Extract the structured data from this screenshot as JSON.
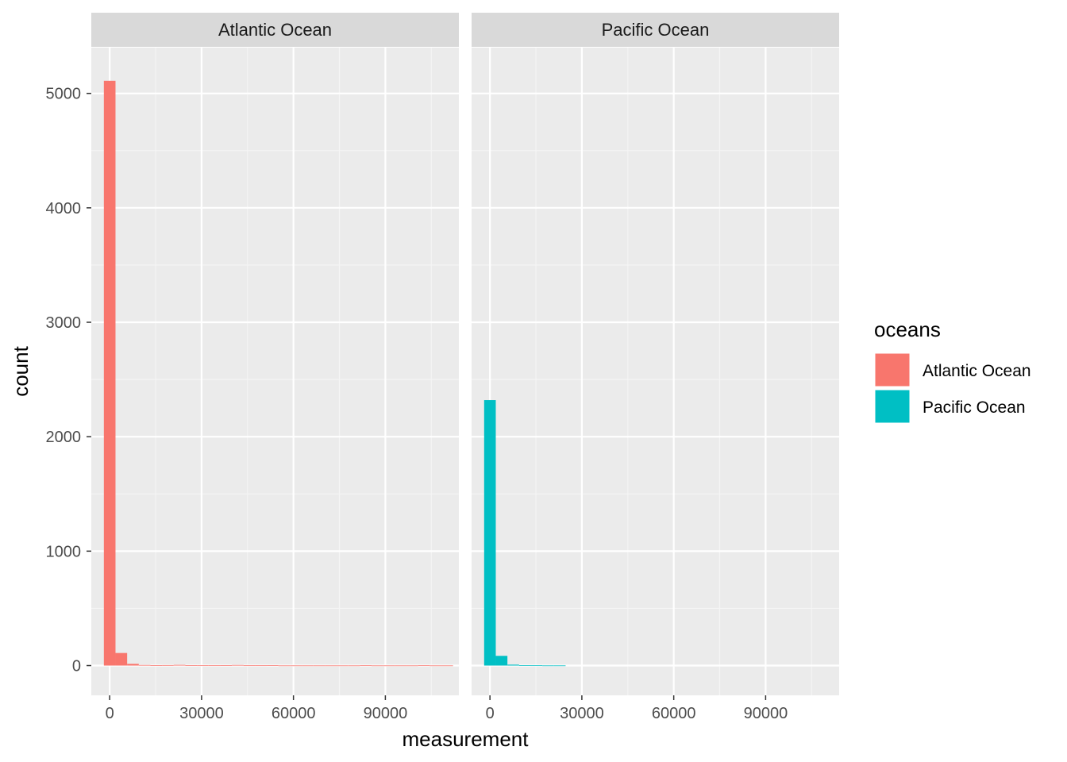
{
  "chart_data": {
    "type": "bar",
    "subtype": "faceted-histogram",
    "xlabel": "measurement",
    "ylabel": "count",
    "xlim": [
      -6000,
      114000
    ],
    "ylim": [
      -260,
      5400
    ],
    "x_ticks": [
      0,
      30000,
      60000,
      90000
    ],
    "x_tick_labels": [
      "0",
      "30000",
      "60000",
      "90000"
    ],
    "y_ticks": [
      0,
      1000,
      2000,
      3000,
      4000,
      5000
    ],
    "y_tick_labels": [
      "0",
      "1000",
      "2000",
      "3000",
      "4000",
      "5000"
    ],
    "bin_width": 3800,
    "legend": {
      "title": "oceans",
      "position": "right",
      "entries": [
        {
          "label": "Atlantic Ocean",
          "color": "#F8766D"
        },
        {
          "label": "Pacific Ocean",
          "color": "#00BFC4"
        }
      ]
    },
    "grid": true,
    "panels": [
      {
        "strip": "Atlantic Ocean",
        "color": "#F8766D",
        "bins": [
          {
            "x": 0,
            "count": 5110
          },
          {
            "x": 3800,
            "count": 110
          },
          {
            "x": 7600,
            "count": 15
          },
          {
            "x": 11400,
            "count": 5
          },
          {
            "x": 15200,
            "count": 3
          },
          {
            "x": 19000,
            "count": 4
          },
          {
            "x": 22800,
            "count": 6
          },
          {
            "x": 26600,
            "count": 3
          },
          {
            "x": 30400,
            "count": 2
          },
          {
            "x": 34200,
            "count": 2
          },
          {
            "x": 38000,
            "count": 3
          },
          {
            "x": 41800,
            "count": 5
          },
          {
            "x": 45600,
            "count": 2
          },
          {
            "x": 49400,
            "count": 2
          },
          {
            "x": 53200,
            "count": 3
          },
          {
            "x": 57000,
            "count": 1
          },
          {
            "x": 60800,
            "count": 1
          },
          {
            "x": 64600,
            "count": 1
          },
          {
            "x": 68400,
            "count": 1
          },
          {
            "x": 72200,
            "count": 1
          },
          {
            "x": 76000,
            "count": 1
          },
          {
            "x": 79800,
            "count": 1
          },
          {
            "x": 83600,
            "count": 2
          },
          {
            "x": 87400,
            "count": 1
          },
          {
            "x": 91200,
            "count": 1
          },
          {
            "x": 95000,
            "count": 1
          },
          {
            "x": 98800,
            "count": 1
          },
          {
            "x": 102600,
            "count": 2
          },
          {
            "x": 106400,
            "count": 1
          },
          {
            "x": 110200,
            "count": 1
          }
        ]
      },
      {
        "strip": "Pacific Ocean",
        "color": "#00BFC4",
        "bins": [
          {
            "x": 0,
            "count": 2320
          },
          {
            "x": 3800,
            "count": 85
          },
          {
            "x": 7600,
            "count": 8
          },
          {
            "x": 11400,
            "count": 3
          },
          {
            "x": 15200,
            "count": 2
          },
          {
            "x": 19000,
            "count": 1
          },
          {
            "x": 22800,
            "count": 1
          },
          {
            "x": 26600,
            "count": 0
          },
          {
            "x": 30400,
            "count": 0
          },
          {
            "x": 34200,
            "count": 0
          },
          {
            "x": 38000,
            "count": 0
          },
          {
            "x": 41800,
            "count": 0
          },
          {
            "x": 45600,
            "count": 0
          },
          {
            "x": 49400,
            "count": 0
          },
          {
            "x": 53200,
            "count": 0
          },
          {
            "x": 57000,
            "count": 0
          },
          {
            "x": 60800,
            "count": 0
          },
          {
            "x": 64600,
            "count": 0
          },
          {
            "x": 68400,
            "count": 0
          },
          {
            "x": 72200,
            "count": 0
          },
          {
            "x": 76000,
            "count": 0
          },
          {
            "x": 79800,
            "count": 0
          },
          {
            "x": 83600,
            "count": 0
          },
          {
            "x": 87400,
            "count": 0
          },
          {
            "x": 91200,
            "count": 0
          },
          {
            "x": 95000,
            "count": 0
          },
          {
            "x": 98800,
            "count": 0
          },
          {
            "x": 102600,
            "count": 0
          },
          {
            "x": 106400,
            "count": 0
          },
          {
            "x": 110200,
            "count": 0
          }
        ]
      }
    ]
  }
}
